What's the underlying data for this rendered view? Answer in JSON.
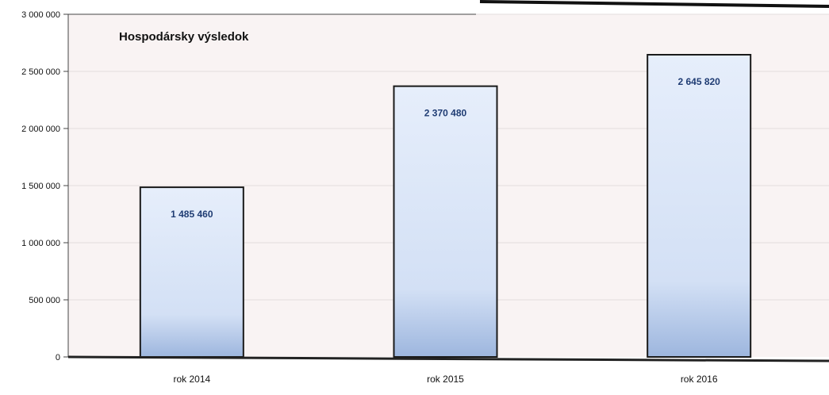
{
  "chart_data": {
    "type": "bar",
    "title": "Hospodársky výsledok",
    "categories": [
      "rok 2014",
      "rok 2015",
      "rok 2016"
    ],
    "values": [
      1485460,
      2370480,
      2645820
    ],
    "data_labels": [
      "1 485 460",
      "2 370 480",
      "2 645 820"
    ],
    "ylim": [
      0,
      3000000
    ],
    "y_ticks": [
      0,
      500000,
      1000000,
      1500000,
      2000000,
      2500000,
      3000000
    ],
    "y_tick_labels": [
      "0",
      "500 000",
      "1 000 000",
      "1 500 000",
      "2 000 000",
      "2 500 000",
      "3 000 000"
    ],
    "xlabel": "",
    "ylabel": "",
    "grid": true,
    "legend": "none"
  },
  "colors": {
    "bar_fill_top": "#e6eefb",
    "bar_fill_bottom": "#9db6de",
    "bar_border": "#1a1a1a",
    "data_label": "#1f3c73",
    "plot_bg": "#f9f3f3",
    "grid": "#e4dcdc",
    "baseline": "#222222"
  }
}
